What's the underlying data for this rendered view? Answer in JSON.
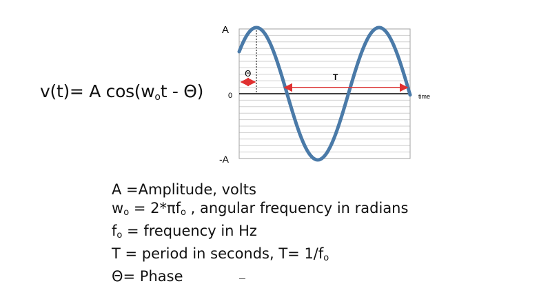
{
  "equation": {
    "lhs": "v(t)= A cos(w",
    "sub": "o",
    "rhs": "t - ",
    "phase_symbol": "Θ",
    "close": ")"
  },
  "plot_labels": {
    "top": "A",
    "zero": "0",
    "bottom": "-A",
    "time": "time",
    "phase": "Θ",
    "period": "T"
  },
  "colors": {
    "wave": "#4a7aa8",
    "arrow": "#e03030",
    "grid": "#c8c8c8",
    "axis": "#000000"
  },
  "legend": [
    {
      "text": "A =Amplitude, volts"
    },
    {
      "pre": "w",
      "sub": "o",
      "post": " = 2*πf",
      "sub2": "o",
      "post2": " , angular frequency in radians"
    },
    {
      "pre": " f",
      "sub": "o",
      "post": "  = frequency in Hz"
    },
    {
      "pre": "T = period in seconds, T= 1/f",
      "sub": "o"
    },
    {
      "text": "Θ= Phase"
    }
  ]
}
